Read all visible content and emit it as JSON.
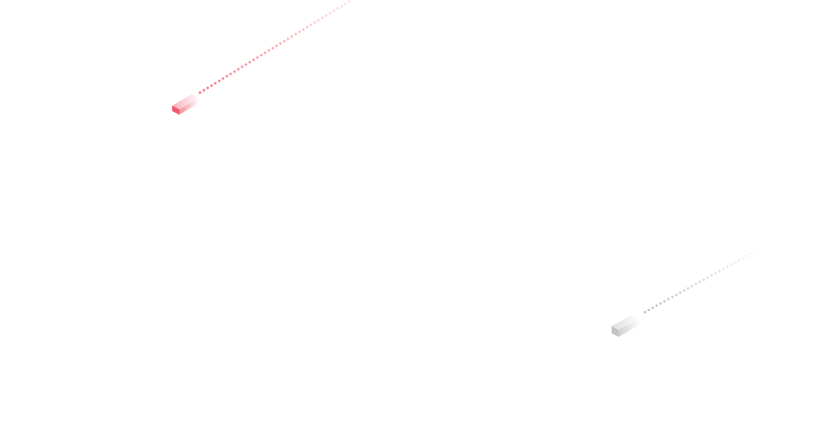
{
  "streaks": [
    {
      "name": "red-streak",
      "color": "#f06070"
    },
    {
      "name": "gray-streak",
      "color": "#b8b8b8"
    }
  ]
}
